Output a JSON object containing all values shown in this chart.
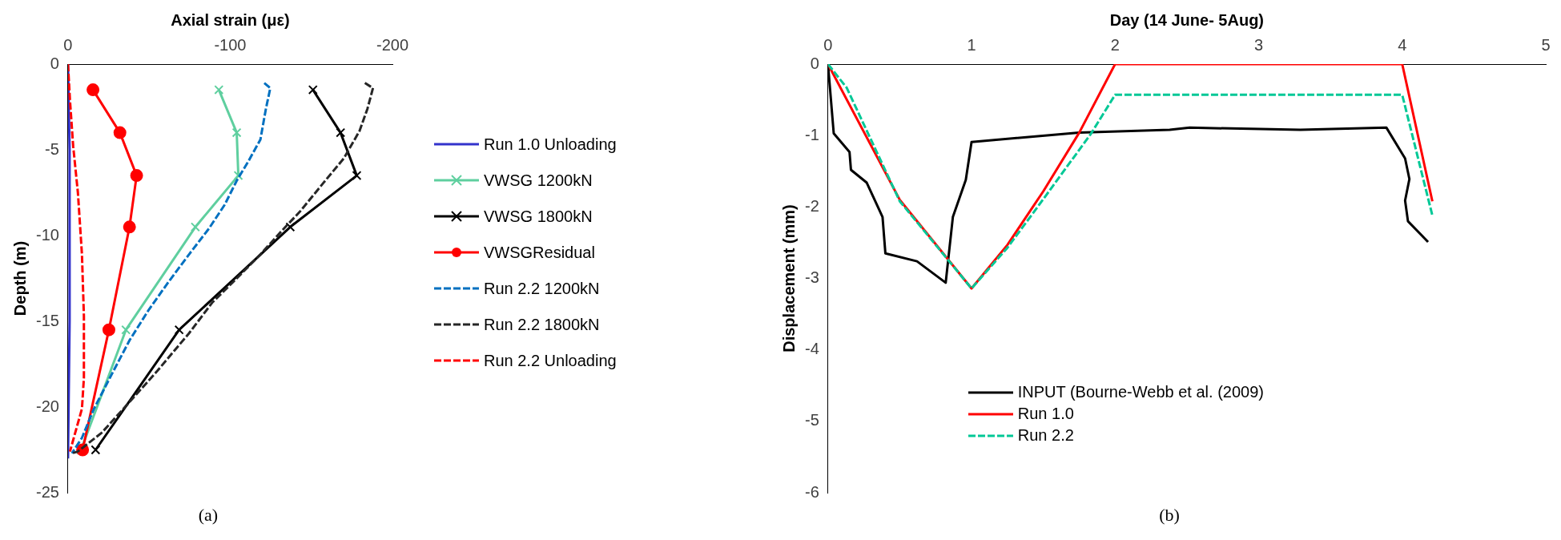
{
  "chart_data": [
    {
      "type": "line",
      "xlabel": "Axial strain (με)",
      "ylabel": "Depth (m)",
      "xlim": [
        0,
        -200
      ],
      "xticks": [
        0,
        -100,
        -200
      ],
      "ylim": [
        -25,
        0
      ],
      "yticks": [
        -25,
        -20,
        -15,
        -10,
        -5,
        0
      ],
      "grid": false,
      "legend": "right",
      "annotations": [
        "(a)"
      ],
      "series": [
        {
          "name": "Run 1.0 Unloading",
          "color": "#3333cc",
          "line_style": "solid",
          "marker": "none",
          "x": [
            0,
            -1,
            -1,
            0
          ],
          "values": [
            0,
            -5,
            -15,
            -23
          ]
        },
        {
          "name": "VWSG 1200kN",
          "color": "#5fcf9f",
          "line_style": "solid",
          "marker": "cross",
          "x": [
            -93,
            -104,
            -105,
            -78.5,
            -35.7,
            -8
          ],
          "values": [
            -1.5,
            -4,
            -6.5,
            -9.5,
            -15.5,
            -22.5
          ]
        },
        {
          "name": "VWSG 1800kN",
          "color": "#000000",
          "line_style": "solid",
          "marker": "cross",
          "x": [
            -151,
            -168,
            -178,
            -137,
            -68.5,
            -17
          ],
          "values": [
            -1.5,
            -4,
            -6.5,
            -9.5,
            -15.5,
            -22.5
          ]
        },
        {
          "name": "VWSGResidual",
          "color": "#ff0000",
          "line_style": "solid",
          "marker": "circle",
          "x": [
            -15.4,
            -32,
            -42.3,
            -37.9,
            -25.2,
            -9
          ],
          "values": [
            -1.5,
            -4,
            -6.5,
            -9.5,
            -15.5,
            -22.5
          ]
        },
        {
          "name": "Run 2.2 1200kN",
          "color": "#0070c0",
          "line_style": "dashed",
          "marker": "none",
          "x": [
            -121,
            -124.7,
            -122,
            -118.6,
            -111,
            -104,
            -96.6,
            -86.8,
            -74.6,
            -62,
            -50,
            -38,
            -28,
            -16,
            -8.6,
            -2.4
          ],
          "values": [
            -1.1,
            -1.4,
            -2.6,
            -4.4,
            -5.7,
            -6.8,
            -8.2,
            -9.6,
            -11.1,
            -12.7,
            -14.3,
            -16.1,
            -17.9,
            -20.1,
            -21.8,
            -22.7
          ]
        },
        {
          "name": "Run 2.2 1800kN",
          "color": "#262626",
          "line_style": "dashed",
          "marker": "none",
          "x": [
            -183,
            -188,
            -184.6,
            -179.7,
            -170,
            -157.7,
            -143,
            -133,
            -118.6,
            -104,
            -89,
            -74.6,
            -55,
            -38,
            -20.8,
            -6,
            -2.4
          ],
          "values": [
            -1.1,
            -1.4,
            -2.6,
            -3.9,
            -5.5,
            -6.9,
            -8.6,
            -9.6,
            -11.1,
            -12.5,
            -13.9,
            -15.7,
            -17.9,
            -19.7,
            -21.5,
            -22.6,
            -22.7
          ]
        },
        {
          "name": "Run 2.2 Unloading",
          "color": "#ff0000",
          "line_style": "dashed",
          "marker": "none",
          "x": [
            0,
            -1.2,
            -3.2,
            -6.1,
            -8.6,
            -9.8,
            -9.8,
            -8.6,
            -1.2
          ],
          "values": [
            0,
            -2.1,
            -4.8,
            -7.5,
            -11.1,
            -14.7,
            -18.3,
            -20.1,
            -22.6
          ]
        }
      ]
    },
    {
      "type": "line",
      "xlabel": "Day (14 June- 5Aug)",
      "ylabel": "Displacement (mm)",
      "xlim": [
        0,
        5
      ],
      "xticks": [
        0,
        1,
        2,
        3,
        4,
        5
      ],
      "ylim": [
        -6,
        0
      ],
      "yticks": [
        -6,
        -5,
        -4,
        -3,
        -2,
        -1,
        0
      ],
      "grid": false,
      "legend": "bottom",
      "annotations": [
        "(b)"
      ],
      "series": [
        {
          "name": "INPUT (Bourne-Webb et al. (2009)",
          "color": "#000000",
          "line_style": "solid",
          "marker": "none",
          "x": [
            0,
            0.04,
            0.15,
            0.16,
            0.27,
            0.38,
            0.4,
            0.62,
            0.82,
            0.87,
            0.96,
            1.0,
            1.75,
            2.38,
            2.52,
            3.29,
            3.89,
            4.02,
            4.05,
            4.02,
            4.04,
            4.18
          ],
          "values": [
            0,
            -0.97,
            -1.23,
            -1.48,
            -1.66,
            -2.14,
            -2.65,
            -2.76,
            -3.06,
            -2.14,
            -1.62,
            -1.09,
            -0.96,
            -0.92,
            -0.89,
            -0.92,
            -0.89,
            -1.32,
            -1.61,
            -1.91,
            -2.2,
            -2.49
          ]
        },
        {
          "name": "Run 1.0",
          "color": "#ff0000",
          "line_style": "solid",
          "marker": "none",
          "x": [
            0,
            0.5,
            1.0,
            1.25,
            1.5,
            1.75,
            2.0,
            4.0,
            4.21
          ],
          "values": [
            0,
            -1.9,
            -3.14,
            -2.53,
            -1.78,
            -0.96,
            0,
            0,
            -1.92
          ]
        },
        {
          "name": "Run 2.2",
          "color": "#00c896",
          "line_style": "dashed",
          "marker": "none",
          "x": [
            0,
            0.13,
            0.5,
            1.0,
            1.25,
            1.46,
            1.83,
            2.0,
            4.0,
            4.21
          ],
          "values": [
            0,
            -0.33,
            -1.92,
            -3.14,
            -2.57,
            -2.0,
            -0.98,
            -0.43,
            -0.43,
            -2.12
          ]
        }
      ]
    }
  ]
}
